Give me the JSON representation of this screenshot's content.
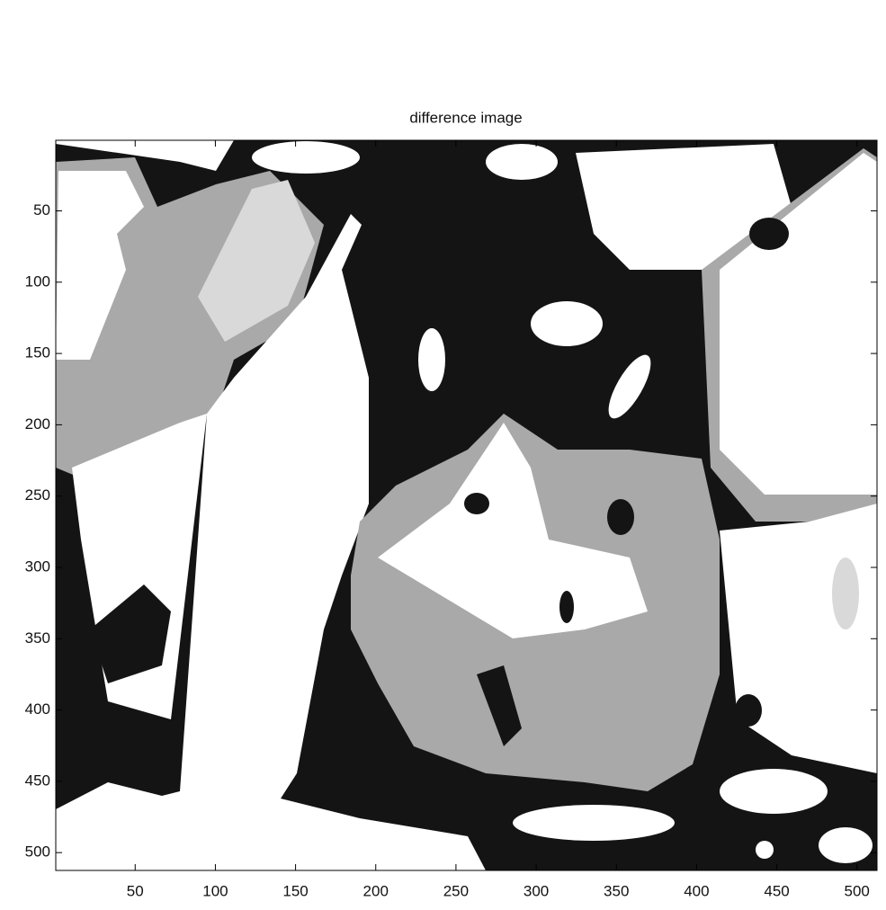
{
  "chart_data": {
    "type": "image",
    "title": "difference image",
    "xlim": [
      0.5,
      512.5
    ],
    "ylim": [
      0.5,
      512.5
    ],
    "y_reversed": true,
    "xticks": [
      50,
      100,
      150,
      200,
      250,
      300,
      350,
      400,
      450,
      500
    ],
    "yticks": [
      50,
      100,
      150,
      200,
      250,
      300,
      350,
      400,
      450,
      500
    ]
  }
}
